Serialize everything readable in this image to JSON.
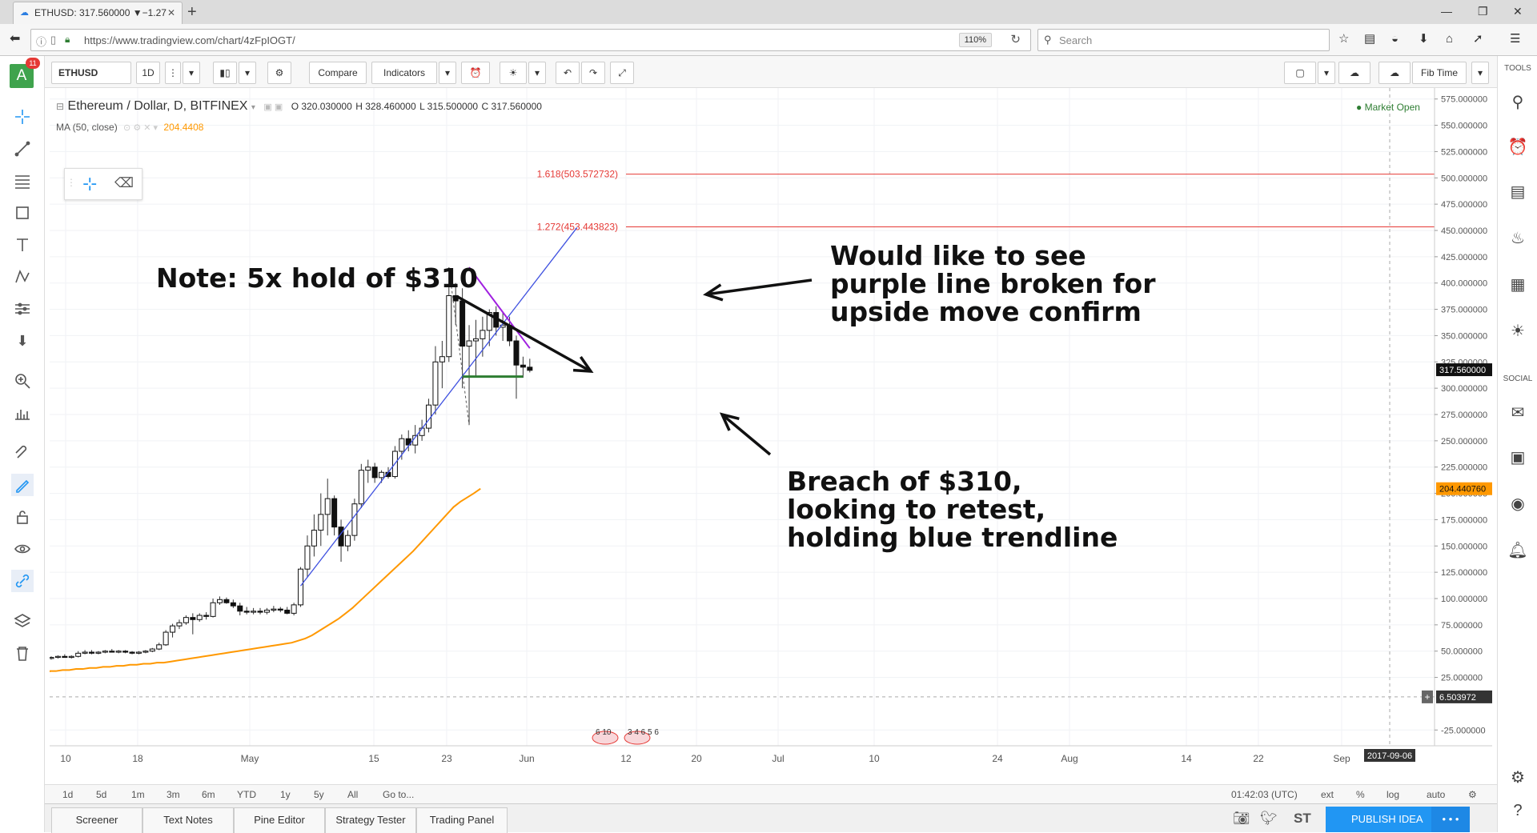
{
  "browser": {
    "tab_title": "ETHUSD: 317.560000 ▼−1.27",
    "tab_close": "✕",
    "new_tab": "+",
    "url": "https://www.tradingview.com/chart/4zFpIOGT/",
    "zoom": "110%",
    "search_placeholder": "Search",
    "window_controls": [
      "—",
      "❐",
      "✕"
    ]
  },
  "left_toolbar": {
    "avatar_letter": "A",
    "notification_count": "11"
  },
  "toolbar": {
    "symbol": "ETHUSD",
    "interval": "1D",
    "compare": "Compare",
    "indicators": "Indicators",
    "fib_time": "Fib Time"
  },
  "legend": {
    "title": "Ethereum / Dollar, D, BITFINEX",
    "open": "O 320.030000",
    "high": "H 328.460000",
    "low": "L 315.500000",
    "close": "C 317.560000",
    "ma_label": "MA (50, close)",
    "ma_value": "204.4408",
    "market_status": "● Market Open"
  },
  "fib_levels": [
    {
      "label": "1.618(503.572732)",
      "value": 503.572732
    },
    {
      "label": "1.272(453.443823)",
      "value": 453.443823
    }
  ],
  "annotations": {
    "note": "Note: 5x hold of $310",
    "purple": [
      "Would like to see",
      "purple line broken for",
      "upside move confirm"
    ],
    "breach": [
      "Breach of $310,",
      "looking to retest,",
      "holding blue trendline"
    ]
  },
  "chart_data": {
    "type": "candlestick",
    "symbol": "Ethereum / Dollar, D, BITFINEX",
    "y_ticks": [
      "575.000000",
      "550.000000",
      "525.000000",
      "500.000000",
      "475.000000",
      "450.000000",
      "425.000000",
      "400.000000",
      "375.000000",
      "350.000000",
      "325.000000",
      "300.000000",
      "275.000000",
      "250.000000",
      "225.000000",
      "200.000000",
      "175.000000",
      "150.000000",
      "125.000000",
      "100.000000",
      "75.000000",
      "50.000000",
      "25.000000",
      "-25.000000"
    ],
    "y_range": [
      -40,
      590
    ],
    "x_ticks": [
      "10",
      "18",
      "May",
      "15",
      "23",
      "Jun",
      "12",
      "20",
      "Jul",
      "10",
      "24",
      "Aug",
      "14",
      "22",
      "Sep"
    ],
    "price_tags": {
      "last": "317.560000",
      "ma": "204.440760",
      "cursor": "6.503972",
      "date": "2017-09-06"
    },
    "event_markers": [
      "6 10",
      "3 4 6 5 6"
    ],
    "candles": [
      {
        "o": 43,
        "h": 45,
        "l": 42,
        "c": 44
      },
      {
        "o": 44,
        "h": 46,
        "l": 43,
        "c": 45
      },
      {
        "o": 45,
        "h": 47,
        "l": 44,
        "c": 44
      },
      {
        "o": 44,
        "h": 46,
        "l": 43,
        "c": 45
      },
      {
        "o": 45,
        "h": 50,
        "l": 44,
        "c": 48
      },
      {
        "o": 48,
        "h": 51,
        "l": 47,
        "c": 49
      },
      {
        "o": 49,
        "h": 51,
        "l": 47,
        "c": 48
      },
      {
        "o": 48,
        "h": 50,
        "l": 47,
        "c": 49
      },
      {
        "o": 49,
        "h": 51,
        "l": 48,
        "c": 50
      },
      {
        "o": 50,
        "h": 52,
        "l": 49,
        "c": 49
      },
      {
        "o": 49,
        "h": 51,
        "l": 48,
        "c": 50
      },
      {
        "o": 50,
        "h": 51,
        "l": 48,
        "c": 49
      },
      {
        "o": 49,
        "h": 50,
        "l": 47,
        "c": 48
      },
      {
        "o": 48,
        "h": 50,
        "l": 47,
        "c": 49
      },
      {
        "o": 49,
        "h": 51,
        "l": 48,
        "c": 50
      },
      {
        "o": 50,
        "h": 53,
        "l": 49,
        "c": 52
      },
      {
        "o": 52,
        "h": 58,
        "l": 51,
        "c": 56
      },
      {
        "o": 56,
        "h": 70,
        "l": 55,
        "c": 68
      },
      {
        "o": 68,
        "h": 76,
        "l": 63,
        "c": 74
      },
      {
        "o": 74,
        "h": 80,
        "l": 71,
        "c": 77
      },
      {
        "o": 77,
        "h": 84,
        "l": 75,
        "c": 82
      },
      {
        "o": 82,
        "h": 86,
        "l": 66,
        "c": 80
      },
      {
        "o": 80,
        "h": 86,
        "l": 78,
        "c": 84
      },
      {
        "o": 84,
        "h": 87,
        "l": 80,
        "c": 83
      },
      {
        "o": 83,
        "h": 100,
        "l": 82,
        "c": 96
      },
      {
        "o": 96,
        "h": 102,
        "l": 94,
        "c": 99
      },
      {
        "o": 99,
        "h": 101,
        "l": 95,
        "c": 96
      },
      {
        "o": 96,
        "h": 99,
        "l": 91,
        "c": 93
      },
      {
        "o": 93,
        "h": 96,
        "l": 84,
        "c": 88
      },
      {
        "o": 88,
        "h": 92,
        "l": 85,
        "c": 87
      },
      {
        "o": 87,
        "h": 91,
        "l": 85,
        "c": 88
      },
      {
        "o": 88,
        "h": 91,
        "l": 85,
        "c": 87
      },
      {
        "o": 87,
        "h": 91,
        "l": 85,
        "c": 89
      },
      {
        "o": 89,
        "h": 93,
        "l": 87,
        "c": 90
      },
      {
        "o": 90,
        "h": 92,
        "l": 87,
        "c": 89
      },
      {
        "o": 89,
        "h": 92,
        "l": 85,
        "c": 86
      },
      {
        "o": 86,
        "h": 96,
        "l": 84,
        "c": 94
      },
      {
        "o": 94,
        "h": 130,
        "l": 92,
        "c": 128
      },
      {
        "o": 128,
        "h": 160,
        "l": 120,
        "c": 150
      },
      {
        "o": 150,
        "h": 180,
        "l": 140,
        "c": 165
      },
      {
        "o": 165,
        "h": 200,
        "l": 150,
        "c": 180
      },
      {
        "o": 180,
        "h": 214,
        "l": 160,
        "c": 195
      },
      {
        "o": 195,
        "h": 198,
        "l": 160,
        "c": 168
      },
      {
        "o": 168,
        "h": 175,
        "l": 135,
        "c": 150
      },
      {
        "o": 150,
        "h": 165,
        "l": 145,
        "c": 160
      },
      {
        "o": 160,
        "h": 195,
        "l": 155,
        "c": 190
      },
      {
        "o": 190,
        "h": 228,
        "l": 186,
        "c": 222
      },
      {
        "o": 222,
        "h": 232,
        "l": 210,
        "c": 225
      },
      {
        "o": 225,
        "h": 229,
        "l": 210,
        "c": 215
      },
      {
        "o": 215,
        "h": 222,
        "l": 210,
        "c": 220
      },
      {
        "o": 220,
        "h": 225,
        "l": 214,
        "c": 216
      },
      {
        "o": 216,
        "h": 245,
        "l": 214,
        "c": 240
      },
      {
        "o": 240,
        "h": 256,
        "l": 232,
        "c": 252
      },
      {
        "o": 252,
        "h": 260,
        "l": 240,
        "c": 246
      },
      {
        "o": 246,
        "h": 265,
        "l": 238,
        "c": 255
      },
      {
        "o": 255,
        "h": 270,
        "l": 250,
        "c": 262
      },
      {
        "o": 262,
        "h": 290,
        "l": 258,
        "c": 284
      },
      {
        "o": 284,
        "h": 340,
        "l": 275,
        "c": 325
      },
      {
        "o": 325,
        "h": 345,
        "l": 300,
        "c": 330
      },
      {
        "o": 330,
        "h": 415,
        "l": 325,
        "c": 388
      },
      {
        "o": 388,
        "h": 400,
        "l": 360,
        "c": 383
      },
      {
        "o": 383,
        "h": 395,
        "l": 300,
        "c": 340
      },
      {
        "o": 340,
        "h": 360,
        "l": 265,
        "c": 345
      },
      {
        "o": 345,
        "h": 365,
        "l": 310,
        "c": 347
      },
      {
        "o": 347,
        "h": 368,
        "l": 330,
        "c": 355
      },
      {
        "o": 355,
        "h": 375,
        "l": 340,
        "c": 372
      },
      {
        "o": 372,
        "h": 378,
        "l": 350,
        "c": 358
      },
      {
        "o": 358,
        "h": 372,
        "l": 345,
        "c": 360
      },
      {
        "o": 360,
        "h": 368,
        "l": 340,
        "c": 345
      },
      {
        "o": 345,
        "h": 350,
        "l": 290,
        "c": 322
      },
      {
        "o": 322,
        "h": 330,
        "l": 310,
        "c": 320
      },
      {
        "o": 320,
        "h": 328,
        "l": 315,
        "c": 317
      }
    ],
    "ma": [
      31,
      31,
      32,
      32,
      33,
      33,
      34,
      34,
      35,
      35,
      36,
      36,
      37,
      37,
      38,
      38,
      39,
      39,
      40,
      41,
      42,
      43,
      44,
      45,
      46,
      47,
      48,
      49,
      50,
      51,
      52,
      53,
      54,
      55,
      56,
      57,
      58,
      60,
      62,
      65,
      69,
      73,
      77,
      81,
      86,
      91,
      97,
      103,
      109,
      115,
      121,
      127,
      133,
      139,
      145,
      152,
      159,
      166,
      173,
      180,
      187,
      192,
      196,
      200,
      204.44
    ],
    "lines": [
      {
        "name": "blue trendline",
        "from": [
          37,
          112
        ],
        "to": [
          69,
          378
        ]
      },
      {
        "name": "purple line",
        "from": [
          62,
          415
        ],
        "to": [
          71,
          338
        ]
      },
      {
        "name": "support $310",
        "from": [
          61,
          311
        ],
        "to": [
          70,
          311
        ]
      }
    ]
  },
  "bottom_bar": {
    "ranges": [
      "1d",
      "5d",
      "1m",
      "3m",
      "6m",
      "YTD",
      "1y",
      "5y",
      "All",
      "Go to..."
    ],
    "time": "01:42:03 (UTC)",
    "ext": "ext",
    "percent": "%",
    "log": "log",
    "auto": "auto"
  },
  "bottom_tabs": [
    "Screener",
    "Text Notes",
    "Pine Editor",
    "Strategy Tester",
    "Trading Panel"
  ],
  "publish": "PUBLISH IDEA",
  "publish_more": "• • •",
  "right_toolbar": {
    "tools_label": "TOOLS",
    "social_label": "SOCIAL"
  }
}
